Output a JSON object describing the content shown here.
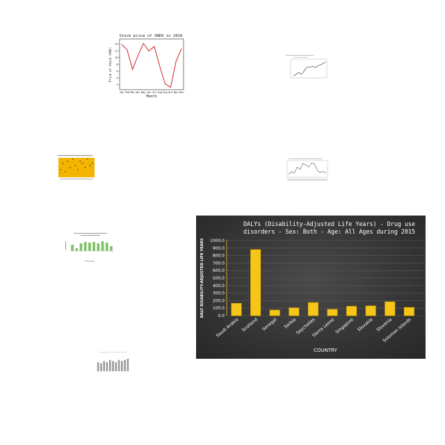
{
  "chart_data": [
    {
      "type": "line",
      "title": "Stock price of SNDX in 2016",
      "xlabel": "Month",
      "ylabel": "Price of Stock (USD)",
      "categories": [
        "Jan",
        "Feb",
        "Mar",
        "Apr",
        "May",
        "Jun",
        "Jul",
        "Aug",
        "Sep",
        "Oct",
        "Nov",
        "Dec"
      ],
      "values": [
        13.9,
        12.3,
        6.5,
        10.6,
        14.2,
        11.9,
        13.3,
        7.4,
        2.2,
        1.2,
        8.9,
        12.6
      ],
      "yticks": [
        2,
        4,
        6,
        8,
        10,
        12,
        14
      ],
      "ylim": [
        0.5,
        15.5
      ],
      "colors": {
        "line": "#cc2222"
      }
    },
    {
      "type": "line",
      "title": "",
      "values": [
        8,
        10,
        14,
        16,
        12,
        15,
        22,
        28,
        30,
        29,
        31,
        30,
        28,
        33,
        34,
        36,
        39,
        42
      ],
      "colors": {
        "line": "#444444"
      }
    },
    {
      "type": "scatter",
      "title": "",
      "values": [
        3,
        6,
        2,
        7,
        4,
        8,
        5,
        3,
        7,
        6,
        4,
        8,
        5,
        6
      ],
      "colors": {
        "background": "#f5b400",
        "point": "#222222"
      }
    },
    {
      "type": "line",
      "title": "",
      "values": [
        20,
        24,
        22,
        30,
        27,
        35,
        33,
        30,
        36,
        34,
        25,
        23,
        24,
        22
      ],
      "colors": {
        "line": "#555555"
      }
    },
    {
      "type": "bar",
      "title": "",
      "values": [
        9,
        4,
        11,
        13,
        12,
        13,
        11,
        14,
        12,
        7
      ],
      "colors": {
        "bar": "#7fc26a"
      }
    },
    {
      "type": "bar",
      "title": "DALYs (Disability-Adjusted Life Years) - Drug use disorders - Sex: Both - Age: All Ages during 2015",
      "title_lines": [
        "DALYs (Disability-Adjusted Life Years) - Drug use",
        "disorders - Sex: Both - Age: All Ages during 2015"
      ],
      "xlabel": "COUNTRY",
      "ylabel": "DALY DISABILITY-ADJUSTED LIFE YEARS",
      "categories": [
        "Saudi Arabia",
        "Scotland",
        "Senegal",
        "Serbia",
        "Seychelles",
        "Sierra Leone",
        "Singapore",
        "Slovakia",
        "Slovenia",
        "Solomon Islands"
      ],
      "values": [
        165,
        880,
        75,
        105,
        175,
        85,
        125,
        130,
        185,
        110
      ],
      "yticks": [
        0,
        100,
        200,
        300,
        400,
        500,
        600,
        700,
        800,
        900,
        1000
      ],
      "ytick_labels": [
        "0.0",
        "100.0",
        "200.0",
        "300.0",
        "400.0",
        "500.0",
        "600.0",
        "700.0",
        "800.0",
        "900.0",
        "1000.0"
      ],
      "ylim": [
        0,
        1000
      ],
      "colors": {
        "background": "#3b3b3b",
        "bar": "#f5c518",
        "bar_edge": "#e6a800",
        "text": "#ffffff",
        "grid": "#5a5a5a"
      }
    },
    {
      "type": "bar",
      "title": "",
      "values": [
        8,
        7,
        9,
        8,
        10,
        9,
        8,
        10,
        9,
        10,
        11
      ],
      "colors": {
        "bar": "#999999"
      }
    }
  ]
}
